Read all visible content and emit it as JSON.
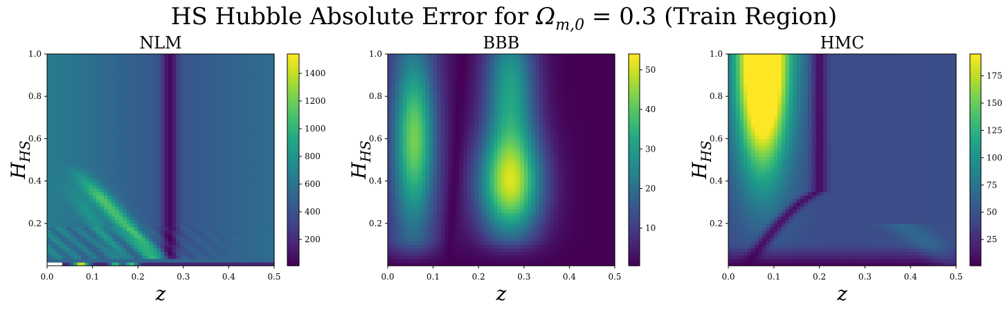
{
  "figure": {
    "title_prefix": "HS Hubble Absolute Error for ",
    "title_symbol": "Ω",
    "title_subscript": "m,0",
    "title_suffix": " = 0.3 (Train Region)"
  },
  "chart_data": [
    {
      "type": "heatmap",
      "title": "NLM",
      "xlabel": "z",
      "ylabel": "H_HS",
      "xlim": [
        0,
        0.5
      ],
      "ylim": [
        0,
        1.0
      ],
      "xticks": [
        0.0,
        0.1,
        0.2,
        0.3,
        0.4,
        0.5
      ],
      "yticks": [
        0.2,
        0.4,
        0.6,
        0.8,
        1.0
      ],
      "colorbar_ticks": [
        200,
        400,
        600,
        800,
        1000,
        1200,
        1400
      ],
      "colorbar_range": [
        10,
        1540
      ],
      "colormap": "viridis"
    },
    {
      "type": "heatmap",
      "title": "BBB",
      "xlabel": "z",
      "ylabel": "H_HS",
      "xlim": [
        0,
        0.5
      ],
      "ylim": [
        0,
        1.0
      ],
      "xticks": [
        0.0,
        0.1,
        0.2,
        0.3,
        0.4,
        0.5
      ],
      "yticks": [
        0.2,
        0.4,
        0.6,
        0.8,
        1.0
      ],
      "colorbar_ticks": [
        10,
        20,
        30,
        40,
        50
      ],
      "colorbar_range": [
        0.5,
        54
      ],
      "colormap": "viridis"
    },
    {
      "type": "heatmap",
      "title": "HMC",
      "xlabel": "z",
      "ylabel": "H_HS",
      "xlim": [
        0,
        0.5
      ],
      "ylim": [
        0,
        1.0
      ],
      "xticks": [
        0.0,
        0.1,
        0.2,
        0.3,
        0.4,
        0.5
      ],
      "yticks": [
        0.2,
        0.4,
        0.6,
        0.8,
        1.0
      ],
      "colorbar_ticks": [
        25,
        50,
        75,
        100,
        125,
        150,
        175
      ],
      "colorbar_range": [
        1,
        195
      ],
      "colormap": "viridis"
    }
  ]
}
